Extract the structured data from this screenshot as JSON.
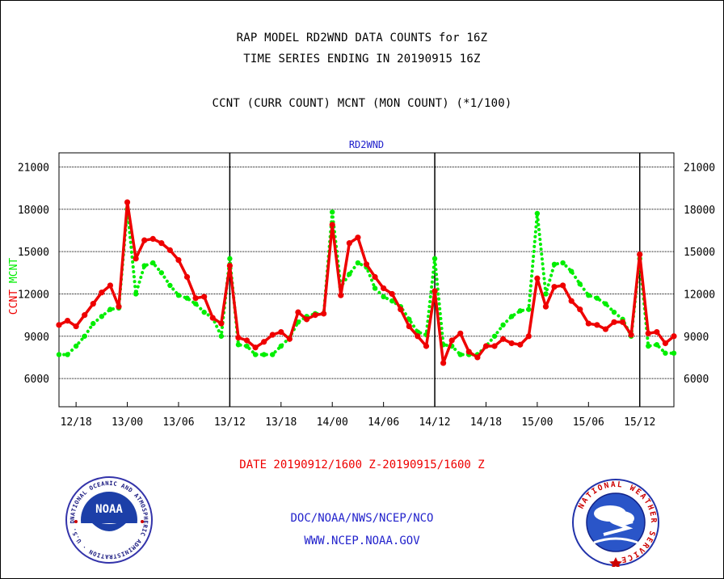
{
  "header": {
    "line1": "RAP MODEL RD2WND DATA COUNTS for 16Z",
    "line2": "TIME SERIES ENDING IN 20190915 16Z",
    "line3": "CCNT (CURR COUNT) MCNT (MON COUNT) (*1/100)"
  },
  "footer": {
    "date_range": "DATE 20190912/1600 Z-20190915/1600 Z",
    "credit1": "DOC/NOAA/NWS/NCEP/NCO",
    "credit2": "WWW.NCEP.NOAA.GOV"
  },
  "logos": {
    "noaa_text": "NOAA",
    "noaa_ring": "NATIONAL OCEANIC AND ATMOSPHERIC ADMINISTRATION · U.S. DEPARTMENT OF COMMERCE ·",
    "nws_ring": "NATIONAL WEATHER SERVICE"
  },
  "colors": {
    "ccnt": "#ee0000",
    "mcnt": "#00ee00",
    "axis_label": "#2222cc"
  },
  "chart_data": {
    "type": "line",
    "title": "RD2WND",
    "ylabel_parts": [
      {
        "text": "CCNT",
        "color": "#ee0000"
      },
      {
        "text": "MCNT",
        "color": "#00ee00"
      }
    ],
    "ylim": [
      4000,
      22000
    ],
    "yticks": [
      6000,
      9000,
      12000,
      15000,
      18000,
      21000
    ],
    "ytick_labels": [
      "6000",
      "9000",
      "12000",
      "15000",
      "18000",
      "21000"
    ],
    "x_hours_start": 0,
    "x_hours_end": 72,
    "x_ticks": [
      {
        "h": 2,
        "label": "12/18"
      },
      {
        "h": 8,
        "label": "13/00"
      },
      {
        "h": 14,
        "label": "13/06"
      },
      {
        "h": 20,
        "label": "13/12"
      },
      {
        "h": 26,
        "label": "13/18"
      },
      {
        "h": 32,
        "label": "14/00"
      },
      {
        "h": 38,
        "label": "14/06"
      },
      {
        "h": 44,
        "label": "14/12"
      },
      {
        "h": 50,
        "label": "14/18"
      },
      {
        "h": 56,
        "label": "15/00"
      },
      {
        "h": 62,
        "label": "15/06"
      },
      {
        "h": 68,
        "label": "15/12"
      }
    ],
    "x_vlines": [
      20,
      44,
      68
    ],
    "grid": "horizontal dotted",
    "series": [
      {
        "name": "CCNT",
        "color": "#ee0000",
        "style": "solid",
        "x": [
          0,
          1,
          2,
          3,
          4,
          5,
          6,
          7,
          8,
          9,
          10,
          11,
          12,
          13,
          14,
          15,
          16,
          17,
          18,
          19,
          20,
          21,
          22,
          23,
          24,
          25,
          26,
          27,
          28,
          29,
          30,
          31,
          32,
          33,
          34,
          35,
          36,
          37,
          38,
          39,
          40,
          41,
          42,
          43,
          44,
          45,
          46,
          47,
          48,
          49,
          50,
          51,
          52,
          53,
          54,
          55,
          56,
          57,
          58,
          59,
          60,
          61,
          62,
          63,
          64,
          65,
          66,
          67,
          68,
          69,
          70,
          71,
          72
        ],
        "values": [
          9800,
          10100,
          9700,
          10500,
          11300,
          12100,
          12600,
          11100,
          18500,
          14500,
          15800,
          15900,
          15600,
          15100,
          14400,
          13200,
          11700,
          11800,
          10300,
          9900,
          14000,
          8900,
          8700,
          8200,
          8600,
          9100,
          9300,
          8800,
          10700,
          10200,
          10500,
          10600,
          16900,
          11900,
          15600,
          16000,
          14100,
          13200,
          12400,
          12000,
          10900,
          9700,
          9000,
          8300,
          12200,
          7100,
          8700,
          9200,
          7900,
          7500,
          8300,
          8300,
          8800,
          8500,
          8400,
          9000,
          13100,
          11100,
          12500,
          12600,
          11500,
          10900,
          9900,
          9800,
          9500,
          10000,
          10000,
          9100,
          14800,
          9200,
          9300,
          8500,
          9000
        ]
      },
      {
        "name": "MCNT",
        "color": "#00ee00",
        "style": "dotted",
        "x": [
          0,
          1,
          2,
          3,
          4,
          5,
          6,
          7,
          8,
          9,
          10,
          11,
          12,
          13,
          14,
          15,
          16,
          17,
          18,
          19,
          20,
          21,
          22,
          23,
          24,
          25,
          26,
          27,
          28,
          29,
          30,
          31,
          32,
          33,
          34,
          35,
          36,
          37,
          38,
          39,
          40,
          41,
          42,
          43,
          44,
          45,
          46,
          47,
          48,
          49,
          50,
          51,
          52,
          53,
          54,
          55,
          56,
          57,
          58,
          59,
          60,
          61,
          62,
          63,
          64,
          65,
          66,
          67,
          68,
          69,
          70,
          71,
          72
        ],
        "values": [
          7700,
          7700,
          8300,
          9000,
          9900,
          10400,
          10900,
          11000,
          18000,
          12000,
          14000,
          14200,
          13500,
          12600,
          11900,
          11700,
          11300,
          10700,
          10300,
          9000,
          14500,
          8400,
          8300,
          7700,
          7700,
          7700,
          8300,
          8900,
          10000,
          10400,
          10600,
          10600,
          17800,
          12500,
          13400,
          14200,
          13900,
          12400,
          11800,
          11500,
          11100,
          10200,
          9300,
          9100,
          14500,
          8400,
          8300,
          7700,
          7700,
          7700,
          8300,
          9000,
          9800,
          10400,
          10800,
          10900,
          17700,
          12000,
          14100,
          14200,
          13600,
          12700,
          11900,
          11700,
          11300,
          10700,
          10200,
          9000,
          14500,
          8300,
          8400,
          7800,
          7800
        ]
      }
    ]
  }
}
